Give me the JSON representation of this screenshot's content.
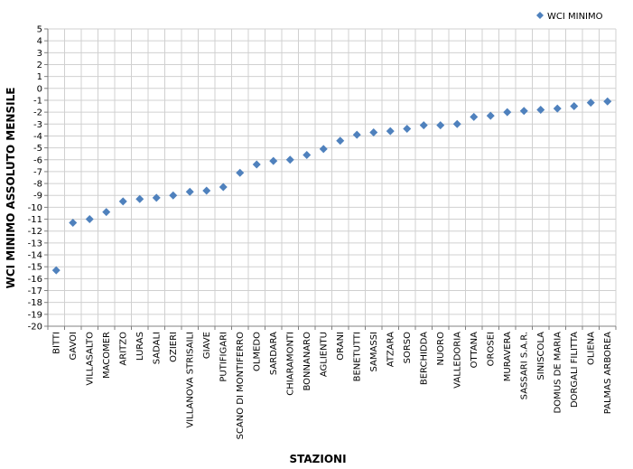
{
  "chart_data": {
    "type": "scatter",
    "title": "",
    "xlabel": "STAZIONI",
    "ylabel": "WCI MINIMO ASSOLUTO MENSILE",
    "ylim": [
      -20,
      5
    ],
    "y_tick_step": 1,
    "grid": true,
    "legend_position": "top-right",
    "marker": "diamond",
    "series": [
      {
        "name": "WCI MINIMO",
        "color": "#4F81BD",
        "values": [
          -15.3,
          -11.3,
          -11.0,
          -10.4,
          -9.5,
          -9.3,
          -9.2,
          -9.0,
          -8.7,
          -8.6,
          -8.3,
          -7.1,
          -6.4,
          -6.1,
          -6.0,
          -5.6,
          -5.1,
          -4.4,
          -3.9,
          -3.7,
          -3.6,
          -3.4,
          -3.1,
          -3.1,
          -3.0,
          -2.4,
          -2.3,
          -2.0,
          -1.9,
          -1.8,
          -1.7,
          -1.5,
          -1.2,
          -1.1
        ]
      }
    ],
    "categories": [
      "BITTI",
      "GAVOI",
      "VILLASALTO",
      "MACOMER",
      "ARITZO",
      "LURAS",
      "SADALI",
      "OZIERI",
      "VILLANOVA STRISAILI",
      "GIAVE",
      "PUTIFIGARI",
      "SCANO DI MONTIFERRO",
      "OLMEDO",
      "SARDARA",
      "CHIARAMONTI",
      "BONNANARO",
      "AGLIENTU",
      "ORANI",
      "BENETUTTI",
      "SAMASSI",
      "ATZARA",
      "SORSO",
      "BERCHIDDA",
      "NUORO",
      "VALLEDORIA",
      "OTTANA",
      "OROSEI",
      "MURAVERA",
      "SASSARI S.A.R.",
      "SINISCOLA",
      "DOMUS DE MARIA",
      "DORGALI FILITTA",
      "OLIENA",
      "PALMAS ARBOREA"
    ]
  }
}
